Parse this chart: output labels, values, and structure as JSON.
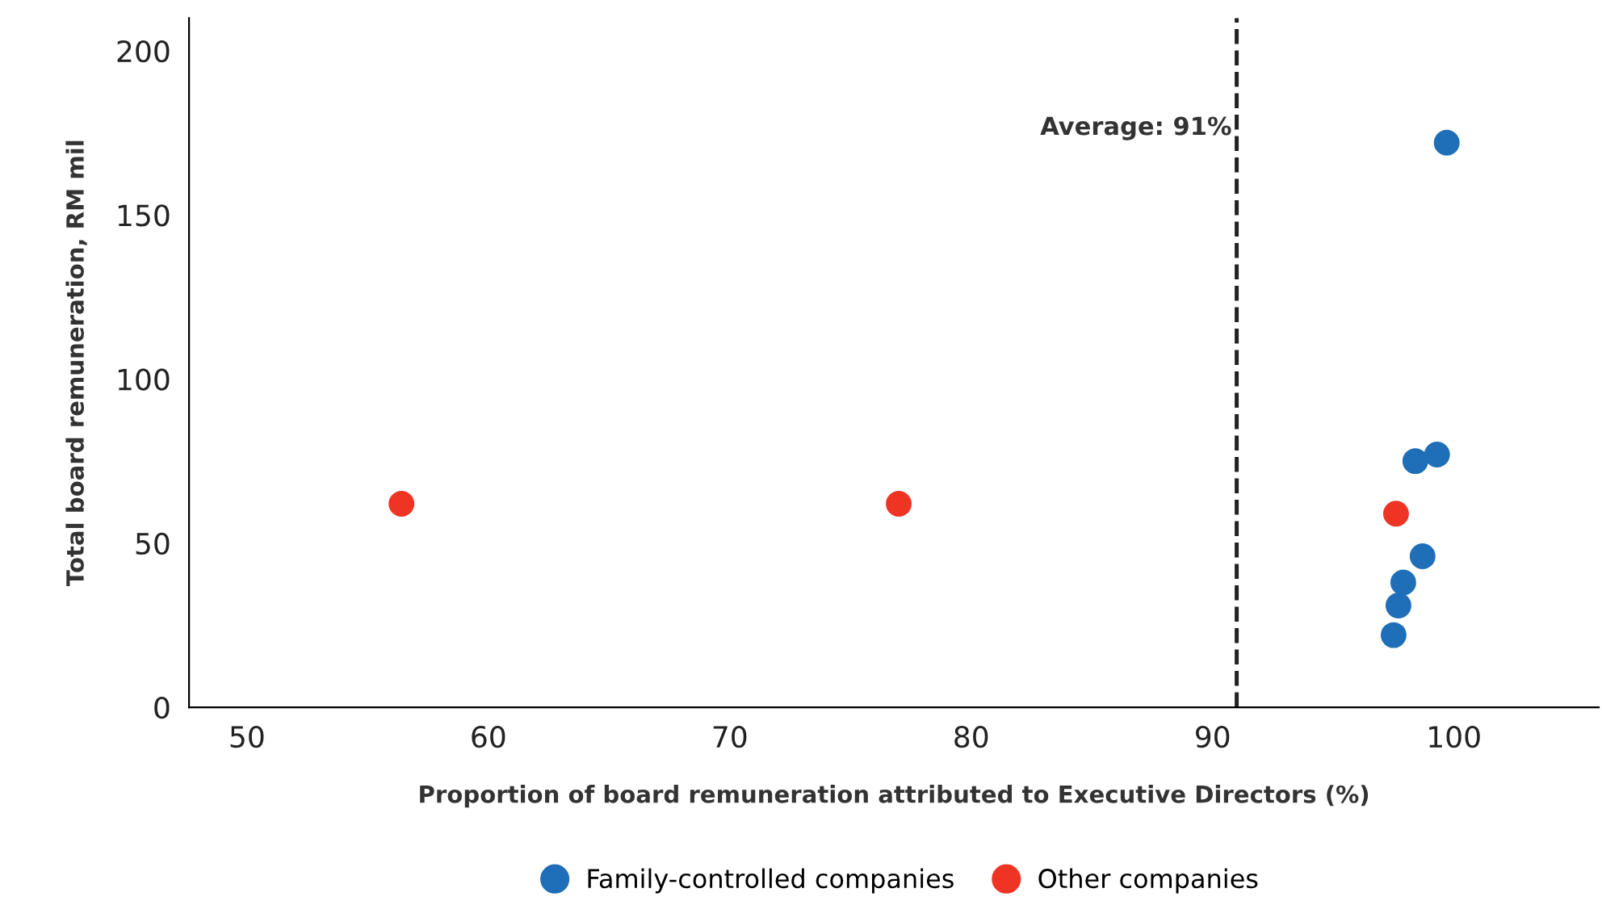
{
  "chart_data": {
    "type": "scatter",
    "xlabel": "Proportion of board remuneration attributed to Executive Directors (%)",
    "ylabel": "Total board remuneration, RM mil",
    "series": [
      {
        "name": "Family-controlled companies",
        "color": "#1f6fb8",
        "x": [
          99.7,
          99.3,
          98.4,
          98.7,
          97.9,
          97.7,
          97.5
        ],
        "values": [
          172,
          77,
          75,
          46,
          38,
          31,
          22
        ]
      },
      {
        "name": "Other companies",
        "color": "#ee3524",
        "x": [
          56.4,
          77.0,
          97.6
        ],
        "values": [
          62,
          62,
          59
        ]
      }
    ],
    "xlim": [
      47.6,
      106
    ],
    "xticks": [
      50,
      60,
      70,
      80,
      90,
      100
    ],
    "ylim": [
      0,
      210
    ],
    "yticks": [
      0,
      50,
      100,
      150,
      200
    ],
    "ref_lines": [
      {
        "axis": "x",
        "value": 91,
        "label": "Average: 91%",
        "color": "#222222",
        "line_style": "dashed"
      }
    ],
    "grid": false,
    "legend": "bottom",
    "marker": "circle"
  }
}
